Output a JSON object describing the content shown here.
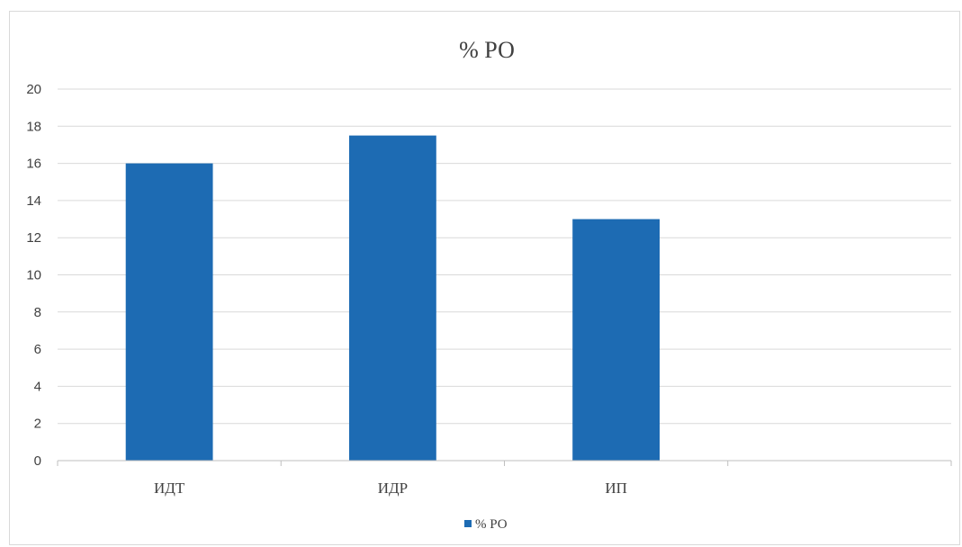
{
  "chart_data": {
    "type": "bar",
    "title": "% РО",
    "categories": [
      "ИДТ",
      "ИДР",
      "ИП",
      ""
    ],
    "series": [
      {
        "name": "% РО",
        "values": [
          16,
          17.5,
          13,
          null
        ]
      }
    ],
    "ylim": [
      0,
      20
    ],
    "yticks": [
      "0",
      "2",
      "4",
      "6",
      "8",
      "10",
      "12",
      "14",
      "16",
      "18",
      "20"
    ],
    "xlabel": "",
    "ylabel": "",
    "grid": true,
    "legend_position": "bottom",
    "colors": {
      "bar": "#1d6bb3",
      "grid": "#d9d9d9",
      "axis": "#bfbfbf",
      "text": "#404040"
    }
  }
}
